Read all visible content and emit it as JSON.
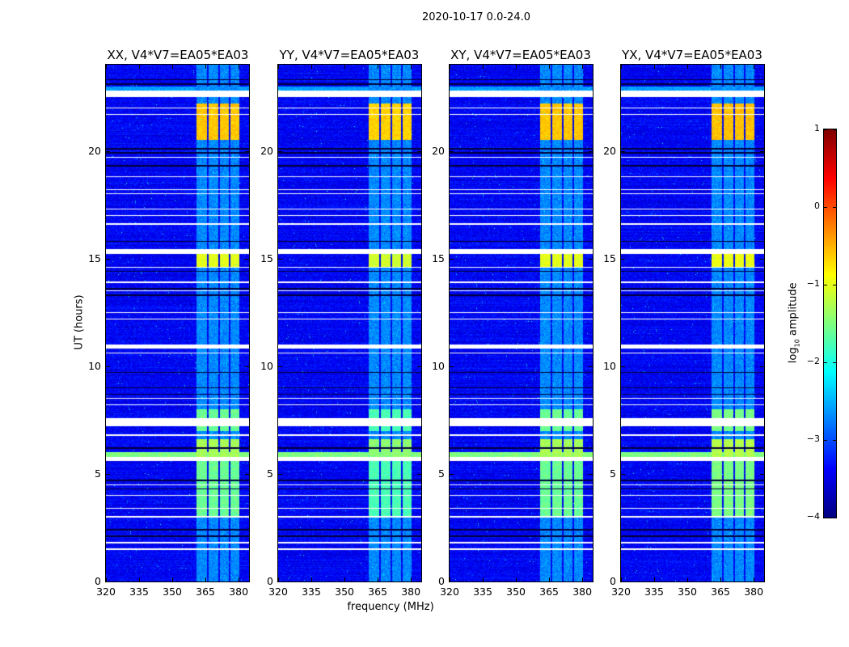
{
  "chart_data": {
    "type": "heatmap",
    "suptitle": "2020-10-17 0.0-24.0",
    "xlabel": "frequency (MHz)",
    "ylabel": "UT (hours)",
    "xlim": [
      320,
      384.7
    ],
    "ylim": [
      0,
      24
    ],
    "xticks": [
      320,
      335,
      350,
      365,
      380
    ],
    "yticks": [
      0,
      5,
      10,
      15,
      20
    ],
    "colorbar": {
      "label_prefix": "log",
      "label_sub": "10",
      "label_suffix": " amplitude",
      "range": [
        -4,
        1
      ],
      "ticks": [
        -4,
        -3,
        -2,
        -1,
        0,
        1
      ],
      "tick_labels": [
        "−4",
        "−3",
        "−2",
        "−1",
        "0",
        "1"
      ],
      "colormap": "jet"
    },
    "panels": [
      {
        "title": "XX, V4*V7=EA05*EA03",
        "gain": 1.0
      },
      {
        "title": "YY, V4*V7=EA05*EA03",
        "gain": 1.1
      },
      {
        "title": "XY, V4*V7=EA05*EA03",
        "gain": 1.0
      },
      {
        "title": "YX, V4*V7=EA05*EA03",
        "gain": 0.95
      }
    ],
    "background_log_amplitude": -3.4,
    "signal_channels_mhz": [
      [
        361,
        365.7
      ],
      [
        366.4,
        370.8
      ],
      [
        371.6,
        375.6
      ],
      [
        376.3,
        380.3
      ]
    ],
    "signal_quiet_log_amplitude": -2.7,
    "signal_episodes": [
      {
        "hours": [
          20.5,
          22.2
        ],
        "log_amplitude": -0.6
      },
      {
        "hours": [
          14.6,
          15.2
        ],
        "log_amplitude": -1.0
      },
      {
        "hours": [
          5.8,
          6.6
        ],
        "log_amplitude": -1.3
      },
      {
        "hours": [
          7.0,
          8.0
        ],
        "log_amplitude": -1.6
      },
      {
        "hours": [
          3.0,
          5.6
        ],
        "log_amplitude": -1.6
      }
    ],
    "broadband_hours": [
      [
        5.8,
        6.0,
        -1.5
      ],
      [
        22.8,
        23.0,
        -2.6
      ]
    ],
    "flagged_hour_ranges": [
      [
        22.5,
        22.8
      ],
      [
        15.2,
        15.45
      ],
      [
        10.8,
        11.0
      ],
      [
        7.2,
        7.6
      ],
      [
        5.6,
        5.8
      ]
    ],
    "flagged_hours_thin": [
      22.0,
      21.7,
      19.7,
      18.8,
      18.2,
      18.0,
      17.3,
      17.0,
      16.6,
      14.6,
      13.9,
      13.5,
      12.5,
      12.2,
      10.6,
      8.5,
      8.2,
      6.8,
      4.5,
      4.0,
      3.4,
      3.0,
      1.8,
      1.5
    ],
    "zero_hours": [
      23.3,
      23.1,
      20.1,
      19.9,
      19.3,
      15.8,
      14.4,
      13.6,
      13.3,
      9.7,
      9.0,
      8.7,
      6.2,
      4.7,
      4.3,
      2.4,
      2.1
    ]
  }
}
